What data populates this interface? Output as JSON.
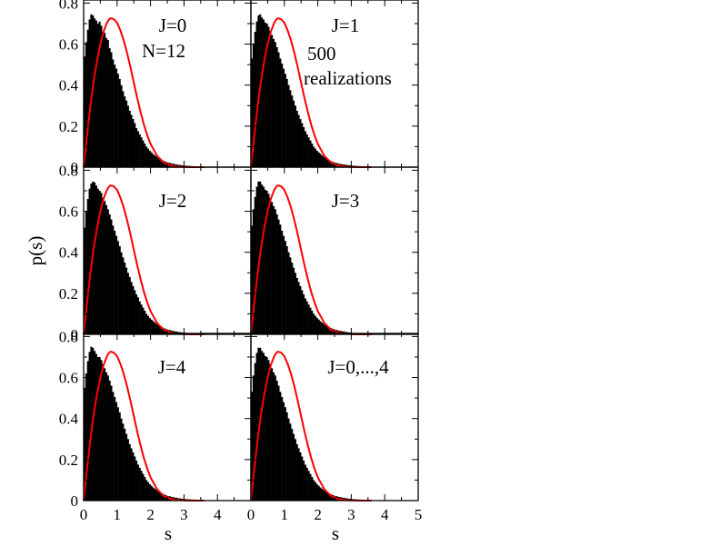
{
  "figure": {
    "ylabel": "p(s)",
    "xlabel": "s"
  },
  "chart_data": {
    "type": "bar",
    "description_kind": "histogram with overlaid curve, 3x2 panel grid",
    "shared_axes": true,
    "xlim": [
      0,
      5
    ],
    "ylim": [
      0,
      0.8
    ],
    "x_ticks": [
      0,
      1,
      2,
      3,
      4,
      5
    ],
    "y_ticks": [
      0,
      0.2,
      0.4,
      0.6,
      0.8
    ],
    "x_tick_labels": [
      "0",
      "1",
      "2",
      "3",
      "4",
      "5"
    ],
    "y_tick_labels": [
      "0",
      "0.2",
      "0.4",
      "0.6",
      "0.8"
    ],
    "ylabel": "p(s)",
    "xlabel": "s",
    "histogram_color": "#000000",
    "curve_color": "#ff0000",
    "bin_width": 0.05,
    "histogram_x": [
      0.025,
      0.075,
      0.125,
      0.175,
      0.225,
      0.275,
      0.325,
      0.375,
      0.425,
      0.475,
      0.525,
      0.575,
      0.625,
      0.675,
      0.725,
      0.775,
      0.825,
      0.875,
      0.925,
      0.975,
      1.025,
      1.075,
      1.125,
      1.175,
      1.225,
      1.275,
      1.325,
      1.375,
      1.425,
      1.475,
      1.525,
      1.575,
      1.625,
      1.675,
      1.725,
      1.775,
      1.825,
      1.875,
      1.925,
      1.975,
      2.025,
      2.075,
      2.125,
      2.175,
      2.225,
      2.275,
      2.325,
      2.375,
      2.425,
      2.475,
      2.55,
      2.65,
      2.75,
      2.85,
      2.95,
      3.05,
      3.15,
      3.25,
      3.35,
      3.45,
      3.55,
      3.65,
      3.75,
      3.85,
      3.95,
      4.05,
      4.15,
      4.25,
      4.35,
      4.45,
      4.55,
      4.65,
      4.75
    ],
    "curve_x": [
      0,
      0.1,
      0.2,
      0.3,
      0.4,
      0.5,
      0.6,
      0.7,
      0.75,
      0.8,
      0.9,
      1.0,
      1.1,
      1.2,
      1.3,
      1.4,
      1.5,
      1.6,
      1.7,
      1.8,
      1.9,
      2.0,
      2.2,
      2.4,
      2.6,
      2.8,
      3.0,
      3.2,
      3.4,
      3.6
    ],
    "curve_y": [
      0,
      0.153,
      0.296,
      0.419,
      0.519,
      0.6,
      0.663,
      0.705,
      0.718,
      0.726,
      0.722,
      0.704,
      0.666,
      0.617,
      0.556,
      0.487,
      0.412,
      0.338,
      0.27,
      0.208,
      0.156,
      0.113,
      0.054,
      0.022,
      0.008,
      0.003,
      0.001,
      0.0,
      0.0,
      0.0
    ],
    "panels": [
      {
        "label": "J=0",
        "extra_label": "N=12",
        "histogram_y": [
          0.54,
          0.61,
          0.67,
          0.72,
          0.745,
          0.74,
          0.725,
          0.715,
          0.7,
          0.71,
          0.69,
          0.66,
          0.655,
          0.63,
          0.62,
          0.58,
          0.56,
          0.525,
          0.5,
          0.48,
          0.455,
          0.43,
          0.4,
          0.37,
          0.345,
          0.325,
          0.3,
          0.275,
          0.255,
          0.235,
          0.215,
          0.19,
          0.175,
          0.16,
          0.145,
          0.13,
          0.115,
          0.1,
          0.09,
          0.08,
          0.072,
          0.064,
          0.058,
          0.051,
          0.045,
          0.04,
          0.036,
          0.032,
          0.028,
          0.025,
          0.021,
          0.017,
          0.014,
          0.011,
          0.009,
          0.007,
          0.006,
          0.005,
          0.004,
          0.003,
          0.002,
          0.002,
          0.002,
          0.001,
          0.001,
          0.001,
          0.001,
          0.001,
          0.0,
          0.0,
          0.0,
          0.0,
          0.0
        ]
      },
      {
        "label": "J=1",
        "extra_label_lines": [
          "500",
          "realizations"
        ],
        "histogram_y": [
          0.53,
          0.6,
          0.66,
          0.71,
          0.74,
          0.745,
          0.73,
          0.72,
          0.705,
          0.7,
          0.685,
          0.665,
          0.645,
          0.625,
          0.61,
          0.585,
          0.56,
          0.53,
          0.505,
          0.48,
          0.455,
          0.43,
          0.4,
          0.375,
          0.35,
          0.325,
          0.3,
          0.275,
          0.255,
          0.235,
          0.215,
          0.195,
          0.175,
          0.16,
          0.145,
          0.13,
          0.115,
          0.1,
          0.09,
          0.08,
          0.072,
          0.065,
          0.058,
          0.051,
          0.045,
          0.04,
          0.035,
          0.031,
          0.027,
          0.024,
          0.02,
          0.016,
          0.013,
          0.011,
          0.009,
          0.007,
          0.006,
          0.005,
          0.004,
          0.003,
          0.002,
          0.002,
          0.002,
          0.001,
          0.001,
          0.001,
          0.001,
          0.001,
          0.0,
          0.0,
          0.0,
          0.0,
          0.0
        ]
      },
      {
        "label": "J=2",
        "histogram_y": [
          0.52,
          0.6,
          0.66,
          0.71,
          0.735,
          0.745,
          0.74,
          0.725,
          0.71,
          0.7,
          0.69,
          0.665,
          0.65,
          0.63,
          0.61,
          0.585,
          0.56,
          0.53,
          0.505,
          0.48,
          0.455,
          0.43,
          0.4,
          0.375,
          0.35,
          0.325,
          0.3,
          0.28,
          0.255,
          0.235,
          0.215,
          0.195,
          0.18,
          0.16,
          0.145,
          0.13,
          0.115,
          0.1,
          0.09,
          0.08,
          0.072,
          0.065,
          0.058,
          0.051,
          0.046,
          0.041,
          0.036,
          0.032,
          0.028,
          0.025,
          0.021,
          0.017,
          0.014,
          0.011,
          0.009,
          0.007,
          0.006,
          0.005,
          0.004,
          0.003,
          0.002,
          0.002,
          0.002,
          0.001,
          0.001,
          0.001,
          0.001,
          0.001,
          0.0,
          0.0,
          0.0,
          0.0,
          0.0
        ]
      },
      {
        "label": "J=3",
        "histogram_y": [
          0.53,
          0.61,
          0.67,
          0.72,
          0.745,
          0.745,
          0.73,
          0.72,
          0.705,
          0.7,
          0.685,
          0.665,
          0.645,
          0.625,
          0.61,
          0.585,
          0.56,
          0.535,
          0.505,
          0.48,
          0.455,
          0.43,
          0.4,
          0.375,
          0.35,
          0.325,
          0.3,
          0.275,
          0.255,
          0.235,
          0.215,
          0.195,
          0.175,
          0.16,
          0.145,
          0.13,
          0.115,
          0.1,
          0.09,
          0.08,
          0.072,
          0.064,
          0.058,
          0.051,
          0.045,
          0.04,
          0.036,
          0.032,
          0.028,
          0.025,
          0.021,
          0.017,
          0.014,
          0.011,
          0.009,
          0.007,
          0.006,
          0.005,
          0.004,
          0.003,
          0.002,
          0.002,
          0.002,
          0.001,
          0.001,
          0.001,
          0.001,
          0.001,
          0.0,
          0.0,
          0.0,
          0.0,
          0.0
        ]
      },
      {
        "label": "J=4",
        "histogram_y": [
          0.55,
          0.62,
          0.68,
          0.725,
          0.75,
          0.745,
          0.73,
          0.715,
          0.7,
          0.7,
          0.685,
          0.665,
          0.645,
          0.625,
          0.61,
          0.585,
          0.56,
          0.53,
          0.505,
          0.48,
          0.455,
          0.43,
          0.4,
          0.375,
          0.35,
          0.325,
          0.3,
          0.275,
          0.255,
          0.235,
          0.215,
          0.195,
          0.175,
          0.16,
          0.145,
          0.13,
          0.115,
          0.1,
          0.09,
          0.08,
          0.072,
          0.064,
          0.058,
          0.051,
          0.045,
          0.04,
          0.036,
          0.032,
          0.028,
          0.025,
          0.021,
          0.017,
          0.014,
          0.011,
          0.009,
          0.007,
          0.006,
          0.005,
          0.004,
          0.003,
          0.002,
          0.002,
          0.002,
          0.001,
          0.001,
          0.001,
          0.001,
          0.001,
          0.0,
          0.0,
          0.0,
          0.0,
          0.0
        ]
      },
      {
        "label": "J=0,...,4",
        "histogram_y": [
          0.53,
          0.61,
          0.67,
          0.72,
          0.745,
          0.745,
          0.73,
          0.72,
          0.705,
          0.7,
          0.685,
          0.665,
          0.645,
          0.625,
          0.61,
          0.585,
          0.56,
          0.53,
          0.505,
          0.48,
          0.455,
          0.43,
          0.4,
          0.375,
          0.35,
          0.325,
          0.3,
          0.275,
          0.255,
          0.235,
          0.215,
          0.195,
          0.175,
          0.16,
          0.145,
          0.13,
          0.115,
          0.1,
          0.09,
          0.08,
          0.072,
          0.064,
          0.058,
          0.051,
          0.045,
          0.04,
          0.036,
          0.032,
          0.028,
          0.025,
          0.021,
          0.017,
          0.014,
          0.011,
          0.009,
          0.007,
          0.006,
          0.005,
          0.004,
          0.003,
          0.002,
          0.002,
          0.002,
          0.001,
          0.001,
          0.001,
          0.001,
          0.001,
          0.0,
          0.0,
          0.0,
          0.0,
          0.0
        ]
      }
    ]
  }
}
